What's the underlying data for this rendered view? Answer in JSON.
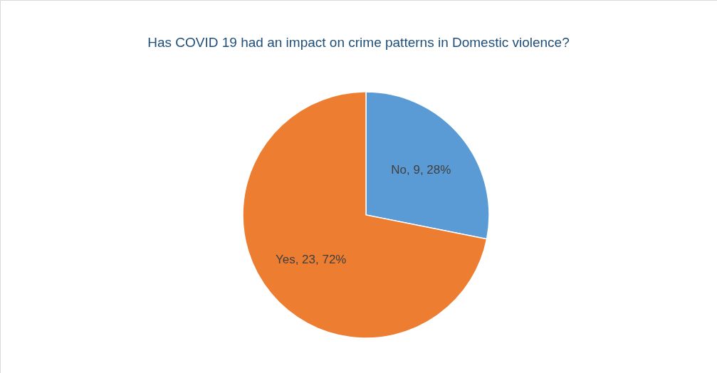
{
  "chart_data": {
    "type": "pie",
    "title": "Has COVID 19 had an impact on crime patterns in Domestic violence?",
    "categories": [
      "No",
      "Yes"
    ],
    "values": [
      9,
      23
    ],
    "colors": [
      "#5b9bd5",
      "#ed7d31"
    ],
    "value_labels": [
      "9, 28%",
      "23, 72%"
    ],
    "legend": false
  }
}
